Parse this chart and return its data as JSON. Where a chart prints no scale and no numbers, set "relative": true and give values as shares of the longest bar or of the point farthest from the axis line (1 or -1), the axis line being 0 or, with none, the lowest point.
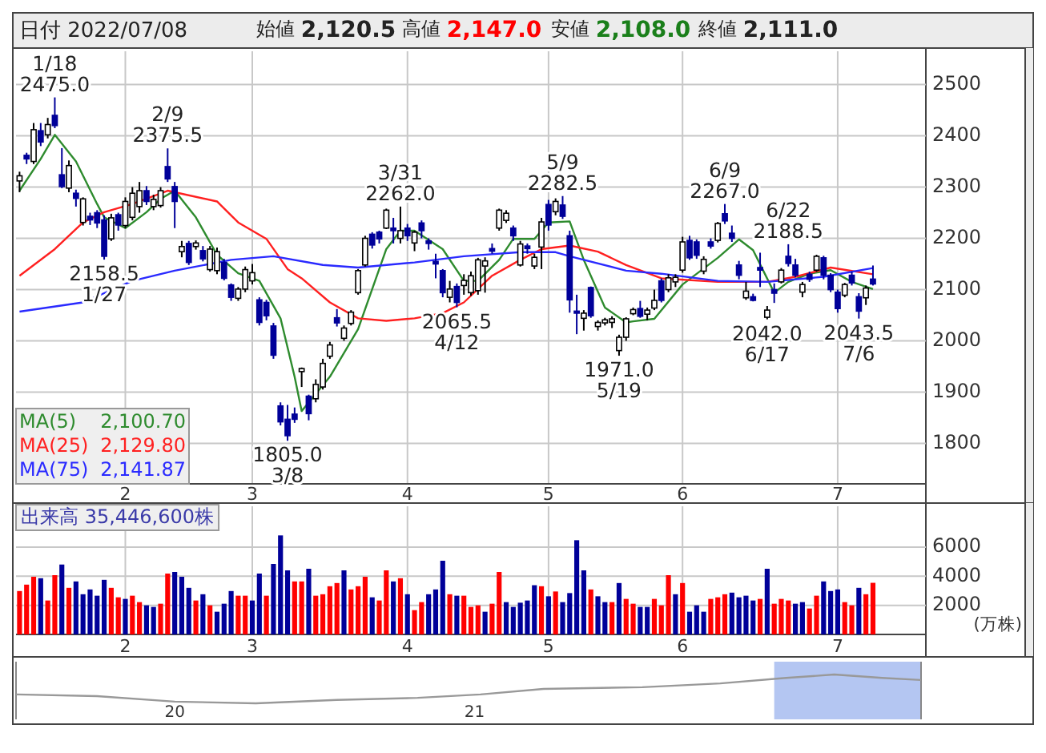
{
  "chart_data": [
    {
      "type": "other",
      "title": "日付 2022/07/08",
      "annotations": [
        "始値 **2,120.5**",
        "高値 **2,147.0**",
        "安値 **2,108.0**",
        "終値 **2,111.0**"
      ]
    },
    {
      "type": "candlestick",
      "colors": [
        "#ffffff",
        "#000099",
        "#ffffff",
        "#000099",
        "#ffffff",
        "#000099",
        "#000099",
        "#ffffff",
        "#000099",
        "#ffffff",
        "#000099",
        "#000099",
        "#000099",
        "#ffffff",
        "#000099",
        "#ffffff",
        "#ffffff",
        "#ffffff",
        "#000099",
        "#ffffff",
        "#ffffff",
        "#000099",
        "#000099",
        "#ffffff",
        "#000099",
        "#ffffff",
        "#000099",
        "#ffffff",
        "#ffffff",
        "#000099",
        "#000099",
        "#ffffff",
        "#ffffff",
        "#ffffff",
        "#000099",
        "#000099",
        "#000099",
        "#000099",
        "#000099",
        "#000099",
        "#ffffff",
        "#000099",
        "#ffffff",
        "#ffffff",
        "#ffffff",
        "#000099",
        "#ffffff",
        "#ffffff",
        "#ffffff",
        "#ffffff",
        "#000099",
        "#000099",
        "#ffffff",
        "#000099",
        "#ffffff",
        "#000099",
        "#ffffff",
        "#000099",
        "#000099",
        "#000099",
        "#000099",
        "#ffffff",
        "#000099",
        "#ffffff",
        "#ffffff",
        "#ffffff",
        "#ffffff",
        "#000099",
        "#ffffff",
        "#ffffff",
        "#000099",
        "#ffffff",
        "#000099",
        "#ffffff",
        "#ffffff",
        "#000099",
        "#ffffff",
        "#000099",
        "#000099",
        "#000099",
        "#ffffff",
        "#000099",
        "#ffffff",
        "#ffffff",
        "#ffffff",
        "#ffffff",
        "#ffffff",
        "#ffffff",
        "#000099",
        "#ffffff",
        "#ffffff",
        "#000099",
        "#ffffff",
        "#ffffff",
        "#ffffff",
        "#000099",
        "#000099",
        "#ffffff",
        "#000099",
        "#ffffff",
        "#000099",
        "#000099",
        "#000099",
        "#ffffff",
        "#000099",
        "#000099",
        "#ffffff",
        "#000099",
        "#ffffff",
        "#000099",
        "#000099",
        "#ffffff",
        "#000099",
        "#ffffff",
        "#000099",
        "#000099",
        "#000099",
        "#ffffff",
        "#000099",
        "#000099",
        "#ffffff",
        "#000099"
      ],
      "grid": true,
      "legend": "bottom left",
      "ylim": [
        1721,
        2565
      ],
      "yticks": [
        1800,
        1900,
        2000,
        2100,
        2200,
        2300,
        2400,
        2500
      ],
      "categories": [
        null,
        null,
        null,
        null,
        null,
        null,
        null,
        null,
        null,
        null,
        null,
        null,
        null,
        null,
        null,
        "2",
        null,
        null,
        null,
        null,
        null,
        null,
        null,
        null,
        null,
        null,
        null,
        null,
        null,
        null,
        null,
        null,
        null,
        "3",
        null,
        null,
        null,
        null,
        null,
        null,
        null,
        null,
        null,
        null,
        null,
        null,
        null,
        null,
        null,
        null,
        null,
        null,
        null,
        null,
        null,
        "4",
        null,
        null,
        null,
        null,
        null,
        null,
        null,
        null,
        null,
        null,
        null,
        null,
        null,
        null,
        null,
        null,
        null,
        null,
        null,
        "5",
        null,
        null,
        null,
        null,
        null,
        null,
        null,
        null,
        null,
        null,
        null,
        null,
        null,
        null,
        null,
        null,
        null,
        null,
        "6",
        null,
        null,
        null,
        null,
        null,
        null,
        null,
        null,
        null,
        null,
        null,
        null,
        null,
        null,
        null,
        null,
        null,
        null,
        null,
        null,
        null,
        "7",
        null,
        null,
        null,
        null,
        null
      ],
      "ohlc": [
        [
          2312,
          2330,
          2290,
          2322
        ],
        [
          2362,
          2367,
          2345,
          2355
        ],
        [
          2350,
          2425,
          2345,
          2412
        ],
        [
          2410,
          2425,
          2380,
          2388
        ],
        [
          2402,
          2435,
          2395,
          2422
        ],
        [
          2440,
          2475,
          2415,
          2420
        ],
        [
          2324,
          2376,
          2298,
          2301
        ],
        [
          2298,
          2352,
          2290,
          2342
        ],
        [
          2288,
          2295,
          2262,
          2278
        ],
        [
          2231,
          2280,
          2225,
          2277
        ],
        [
          2243,
          2250,
          2226,
          2236
        ],
        [
          2250,
          2255,
          2220,
          2230
        ],
        [
          2236,
          2245,
          2158.5,
          2165
        ],
        [
          2199,
          2248,
          2195,
          2240
        ],
        [
          2246,
          2250,
          2215,
          2226
        ],
        [
          2225,
          2280,
          2220,
          2272
        ],
        [
          2241,
          2300,
          2235,
          2288
        ],
        [
          2262,
          2310,
          2250,
          2293
        ],
        [
          2293,
          2302,
          2265,
          2272
        ],
        [
          2262,
          2285,
          2255,
          2276
        ],
        [
          2264,
          2300,
          2260,
          2293
        ],
        [
          2340,
          2375.5,
          2310,
          2316
        ],
        [
          2301,
          2310,
          2220,
          2272
        ],
        [
          2174,
          2195,
          2163,
          2184
        ],
        [
          2190,
          2195,
          2148,
          2153
        ],
        [
          2184,
          2196,
          2178,
          2191
        ],
        [
          2176,
          2185,
          2155,
          2160
        ],
        [
          2139,
          2185,
          2135,
          2179
        ],
        [
          2137,
          2182,
          2130,
          2174
        ],
        [
          2153,
          2160,
          2118,
          2122
        ],
        [
          2109,
          2112,
          2078,
          2085
        ],
        [
          2083,
          2105,
          2078,
          2101
        ],
        [
          2101,
          2145,
          2095,
          2139
        ],
        [
          2117,
          2150,
          2110,
          2133
        ],
        [
          2080,
          2085,
          2030,
          2036
        ],
        [
          2075,
          2080,
          2040,
          2049
        ],
        [
          2029,
          2035,
          1965,
          1972
        ],
        [
          1873,
          1880,
          1835,
          1842
        ],
        [
          1847,
          1875,
          1805,
          1815
        ],
        [
          1857,
          1870,
          1840,
          1847
        ],
        [
          1940,
          1948,
          1910,
          1946
        ],
        [
          1892,
          1895,
          1845,
          1858
        ],
        [
          1887,
          1925,
          1880,
          1915
        ],
        [
          1910,
          1965,
          1905,
          1956
        ],
        [
          1970,
          1998,
          1965,
          1992
        ],
        [
          2045,
          2062,
          2028,
          2035
        ],
        [
          2005,
          2030,
          2000,
          2025
        ],
        [
          2034,
          2060,
          2030,
          2056
        ],
        [
          2094,
          2140,
          2090,
          2137
        ],
        [
          2148,
          2205,
          2145,
          2200
        ],
        [
          2208,
          2212,
          2180,
          2187
        ],
        [
          2212,
          2215,
          2190,
          2199
        ],
        [
          2220,
          2258,
          2218,
          2255
        ],
        [
          2220,
          2240,
          2190,
          2215
        ],
        [
          2200,
          2262,
          2190,
          2215
        ],
        [
          2220,
          2228,
          2195,
          2205
        ],
        [
          2191,
          2215,
          2175,
          2212
        ],
        [
          2230,
          2235,
          2200,
          2215
        ],
        [
          2195,
          2200,
          2178,
          2190
        ],
        [
          2155,
          2170,
          2122,
          2150
        ],
        [
          2137,
          2140,
          2085,
          2094
        ],
        [
          2085,
          2117,
          2075,
          2101
        ],
        [
          2106,
          2112,
          2065.5,
          2075
        ],
        [
          2108,
          2130,
          2090,
          2118
        ],
        [
          2094,
          2135,
          2088,
          2127
        ],
        [
          2098,
          2162,
          2090,
          2158
        ],
        [
          2146,
          2163,
          2094,
          2156
        ],
        [
          2180,
          2190,
          2170,
          2175
        ],
        [
          2220,
          2258,
          2215,
          2255
        ],
        [
          2235,
          2255,
          2230,
          2249
        ],
        [
          2220,
          2225,
          2195,
          2205
        ],
        [
          2148,
          2195,
          2145,
          2189
        ],
        [
          2185,
          2190,
          2170,
          2180
        ],
        [
          2146,
          2170,
          2140,
          2163
        ],
        [
          2183,
          2240,
          2140,
          2232
        ],
        [
          2266,
          2275,
          2215,
          2226
        ],
        [
          2252,
          2278,
          2245,
          2272
        ],
        [
          2265,
          2282.5,
          2238,
          2243
        ],
        [
          2205,
          2215,
          2055,
          2080
        ],
        [
          2058,
          2090,
          2013,
          2054
        ],
        [
          2044,
          2060,
          2020,
          2054
        ],
        [
          2104,
          2106,
          2045,
          2049
        ],
        [
          2028,
          2040,
          2020,
          2036
        ],
        [
          2035,
          2045,
          2030,
          2041
        ],
        [
          2036,
          2048,
          2025,
          2043
        ],
        [
          1981,
          2012,
          1971,
          2007
        ],
        [
          2007,
          2046,
          2000,
          2043
        ],
        [
          2053,
          2065,
          2050,
          2061
        ],
        [
          2063,
          2078,
          2045,
          2048
        ],
        [
          2052,
          2065,
          2040,
          2060
        ],
        [
          2064,
          2100,
          2060,
          2079
        ],
        [
          2117,
          2122,
          2075,
          2079
        ],
        [
          2100,
          2130,
          2095,
          2123
        ],
        [
          2115,
          2130,
          2105,
          2124
        ],
        [
          2138,
          2203,
          2133,
          2193
        ],
        [
          2196,
          2205,
          2158,
          2162
        ],
        [
          2193,
          2198,
          2160,
          2167
        ],
        [
          2136,
          2165,
          2130,
          2159
        ],
        [
          2193,
          2200,
          2180,
          2185
        ],
        [
          2196,
          2232,
          2192,
          2229
        ],
        [
          2248,
          2267,
          2228,
          2234
        ],
        [
          2210,
          2225,
          2193,
          2200
        ],
        [
          2148,
          2156,
          2120,
          2128
        ],
        [
          2084,
          2115,
          2080,
          2097
        ],
        [
          2086,
          2092,
          2077,
          2079
        ],
        [
          2143,
          2172,
          2105,
          2138
        ],
        [
          2046,
          2068,
          2042,
          2060
        ],
        [
          2100,
          2112,
          2074,
          2093
        ],
        [
          2115,
          2142,
          2112,
          2138
        ],
        [
          2165,
          2188.5,
          2145,
          2151
        ],
        [
          2148,
          2160,
          2124,
          2128
        ],
        [
          2095,
          2115,
          2085,
          2110
        ],
        [
          2130,
          2135,
          2115,
          2120
        ],
        [
          2138,
          2168,
          2135,
          2165
        ],
        [
          2162,
          2166,
          2120,
          2128
        ],
        [
          2128,
          2132,
          2095,
          2100
        ],
        [
          2095,
          2100,
          2055,
          2063
        ],
        [
          2089,
          2113,
          2085,
          2110
        ],
        [
          2128,
          2135,
          2108,
          2113
        ],
        [
          2086,
          2093,
          2043.5,
          2058
        ],
        [
          2084,
          2108,
          2070,
          2103
        ],
        [
          2120.5,
          2147,
          2108,
          2111
        ]
      ],
      "series": [
        {
          "type": "line",
          "name": "MA(5) 2,100.70",
          "color": "#2e8b2e",
          "values": [
            2293,
            null,
            null,
            2355,
            null,
            2402,
            null,
            null,
            2350,
            null,
            null,
            2267,
            2241,
            null,
            null,
            2220,
            null,
            null,
            2251,
            null,
            2277,
            null,
            2293,
            null,
            null,
            2241,
            null,
            null,
            2168,
            null,
            null,
            2132,
            null,
            null,
            2117,
            null,
            null,
            2044,
            null,
            1930,
            1863,
            null,
            null,
            null,
            1930,
            null,
            null,
            null,
            2023,
            null,
            null,
            null,
            2179,
            null,
            2215,
            null,
            2215,
            null,
            null,
            null,
            2179,
            null,
            null,
            2117,
            null,
            2117,
            null,
            null,
            2158,
            null,
            2199,
            null,
            null,
            2199,
            null,
            2231,
            null,
            null,
            2233,
            null,
            2158,
            null,
            null,
            2065,
            null,
            null,
            2036,
            2038,
            null,
            null,
            2043,
            null,
            null,
            null,
            2110,
            null,
            null,
            null,
            null,
            2162,
            null,
            null,
            2198,
            null,
            2177,
            null,
            null,
            2094,
            null,
            2115,
            null,
            null,
            2131,
            null,
            null,
            2138,
            null,
            null,
            2115,
            null,
            null,
            2101
          ]
        },
        {
          "type": "line",
          "name": "MA(25) 2,129.80",
          "color": "#ff2020",
          "values": [
            2127,
            null,
            null,
            null,
            null,
            2179,
            null,
            null,
            null,
            2231,
            null,
            null,
            2251,
            null,
            null,
            null,
            2267,
            null,
            null,
            null,
            null,
            2293,
            null,
            null,
            null,
            null,
            null,
            null,
            2272,
            null,
            null,
            2231,
            null,
            null,
            null,
            2199,
            null,
            null,
            2140,
            null,
            2122,
            null,
            null,
            null,
            2075,
            null,
            null,
            null,
            2044,
            null,
            null,
            null,
            2039,
            null,
            null,
            null,
            2044,
            null,
            null,
            null,
            2054,
            null,
            null,
            2075,
            null,
            null,
            null,
            2127,
            null,
            null,
            null,
            2158,
            null,
            null,
            2179,
            null,
            null,
            null,
            2186,
            null,
            null,
            null,
            2174,
            null,
            null,
            null,
            2148,
            null,
            null,
            null,
            null,
            2122,
            null,
            null,
            null,
            null,
            null,
            null,
            null,
            2115,
            null,
            null,
            null,
            null,
            null,
            null,
            2115,
            null,
            null,
            null,
            2125,
            null,
            null,
            null,
            null,
            2143,
            null,
            null,
            null,
            null,
            null,
            2130
          ]
        },
        {
          "type": "line",
          "name": "MA(75) 2,141.87",
          "color": "#2a2aff",
          "values": [
            2057,
            null,
            null,
            null,
            null,
            null,
            null,
            null,
            null,
            2075,
            null,
            null,
            null,
            null,
            null,
            null,
            2117,
            null,
            null,
            null,
            null,
            null,
            2137,
            null,
            null,
            null,
            null,
            null,
            null,
            null,
            2158,
            null,
            null,
            null,
            null,
            null,
            2165,
            null,
            null,
            null,
            null,
            null,
            null,
            2148,
            null,
            null,
            null,
            null,
            2143,
            null,
            null,
            null,
            null,
            null,
            null,
            null,
            2153,
            null,
            null,
            null,
            null,
            null,
            null,
            2165,
            null,
            null,
            null,
            null,
            null,
            null,
            null,
            2173,
            null,
            null,
            null,
            null,
            2173,
            null,
            2165,
            null,
            null,
            null,
            null,
            null,
            null,
            null,
            2137,
            null,
            null,
            null,
            null,
            2131,
            null,
            null,
            null,
            null,
            null,
            null,
            null,
            2117,
            null,
            null,
            null,
            null,
            null,
            null,
            2115,
            null,
            null,
            null,
            null,
            null,
            null,
            null,
            2125,
            null,
            null,
            null,
            null,
            null,
            null,
            2142
          ]
        }
      ],
      "annotations": [
        {
          "text": "1/18\n2475.0",
          "y": 2475
        },
        {
          "text": "2158.5\n1/27",
          "y": 2158.5
        },
        {
          "text": "2/9\n2375.5",
          "y": 2375.5
        },
        {
          "text": "1805.0\n3/8",
          "y": 1805
        },
        {
          "text": "3/31\n2262.0",
          "y": 2262
        },
        {
          "text": "2065.5\n4/12",
          "y": 2065.5
        },
        {
          "text": "5/9\n2282.5",
          "y": 2282.5
        },
        {
          "text": "1971.0\n5/19",
          "y": 1971
        },
        {
          "text": "6/9\n2267.0",
          "y": 2267
        },
        {
          "text": "2042.0\n6/17",
          "y": 2042
        },
        {
          "text": "6/22\n2188.5",
          "y": 2188.5
        },
        {
          "text": "2043.5\n7/6",
          "y": 2043.5
        }
      ]
    },
    {
      "type": "bar",
      "title": "出来高 35,446,600株",
      "ylabel": "(万株)",
      "grid": true,
      "ylim": [
        0,
        8800
      ],
      "yticks": [
        2000,
        4000,
        6000
      ],
      "categories": [
        null,
        null,
        null,
        null,
        null,
        null,
        null,
        null,
        null,
        null,
        null,
        null,
        null,
        null,
        null,
        "2",
        null,
        null,
        null,
        null,
        null,
        null,
        null,
        null,
        null,
        null,
        null,
        null,
        null,
        null,
        null,
        null,
        null,
        "3",
        null,
        null,
        null,
        null,
        null,
        null,
        null,
        null,
        null,
        null,
        null,
        null,
        null,
        null,
        null,
        null,
        null,
        null,
        null,
        null,
        null,
        "4",
        null,
        null,
        null,
        null,
        null,
        null,
        null,
        null,
        null,
        null,
        null,
        null,
        null,
        null,
        null,
        null,
        null,
        null,
        null,
        "5",
        null,
        null,
        null,
        null,
        null,
        null,
        null,
        null,
        null,
        null,
        null,
        null,
        null,
        null,
        null,
        null,
        null,
        null,
        "6",
        null,
        null,
        null,
        null,
        null,
        null,
        null,
        null,
        null,
        null,
        null,
        null,
        null,
        null,
        null,
        null,
        null,
        null,
        null,
        null,
        null,
        "7",
        null,
        null,
        null,
        null,
        null
      ],
      "values": [
        2980,
        3420,
        3960,
        3860,
        2330,
        4070,
        4800,
        3200,
        3640,
        2760,
        3090,
        2660,
        3750,
        3200,
        2550,
        2440,
        2660,
        2220,
        2000,
        1890,
        2110,
        4180,
        4290,
        3960,
        3200,
        2330,
        2760,
        2000,
        1560,
        2110,
        2980,
        2660,
        2660,
        2330,
        4180,
        2660,
        4840,
        6800,
        4400,
        3640,
        3640,
        4510,
        2660,
        2760,
        3310,
        3530,
        4400,
        3090,
        3310,
        3960,
        2550,
        2330,
        4400,
        3640,
        3860,
        2760,
        1670,
        2220,
        2760,
        3090,
        5060,
        2760,
        2660,
        2660,
        1890,
        2000,
        1560,
        2110,
        4290,
        2220,
        1890,
        2180,
        2330,
        3380,
        3310,
        2620,
        2950,
        2220,
        2840,
        6470,
        4400,
        3090,
        2620,
        2220,
        2220,
        3530,
        2440,
        2110,
        1890,
        1890,
        2440,
        2000,
        4070,
        2760,
        3530,
        1560,
        2000,
        1560,
        2440,
        2550,
        2760,
        2870,
        2550,
        2660,
        2330,
        2440,
        4510,
        2110,
        2440,
        2330,
        2110,
        2220,
        1780,
        2660,
        3640,
        2980,
        3090,
        2220,
        2000,
        3200,
        2760,
        3544.66
      ],
      "colors": [
        "#ff0000",
        "#ff0000",
        "#ff0000",
        "#000099",
        "#ff0000",
        "#ff0000",
        "#000099",
        "#ff0000",
        "#000099",
        "#000099",
        "#000099",
        "#000099",
        "#000099",
        "#ff0000",
        "#ff0000",
        "#000099",
        "#ff0000",
        "#ff0000",
        "#000099",
        "#000099",
        "#ff0000",
        "#ff0000",
        "#000099",
        "#000099",
        "#000099",
        "#ff0000",
        "#000099",
        "#ff0000",
        "#000099",
        "#000099",
        "#000099",
        "#ff0000",
        "#ff0000",
        "#000099",
        "#000099",
        "#ff0000",
        "#000099",
        "#000099",
        "#000099",
        "#ff0000",
        "#ff0000",
        "#000099",
        "#ff0000",
        "#ff0000",
        "#ff0000",
        "#ff0000",
        "#000099",
        "#ff0000",
        "#ff0000",
        "#ff0000",
        "#000099",
        "#ff0000",
        "#ff0000",
        "#000099",
        "#ff0000",
        "#000099",
        "#ff0000",
        "#ff0000",
        "#000099",
        "#000099",
        "#000099",
        "#ff0000",
        "#000099",
        "#ff0000",
        "#ff0000",
        "#ff0000",
        "#000099",
        "#ff0000",
        "#ff0000",
        "#000099",
        "#000099",
        "#000099",
        "#000099",
        "#000099",
        "#ff0000",
        "#000099",
        "#ff0000",
        "#000099",
        "#000099",
        "#000099",
        "#000099",
        "#ff0000",
        "#000099",
        "#000099",
        "#ff0000",
        "#000099",
        "#ff0000",
        "#ff0000",
        "#000099",
        "#000099",
        "#ff0000",
        "#ff0000",
        "#ff0000",
        "#000099",
        "#ff0000",
        "#000099",
        "#000099",
        "#000099",
        "#ff0000",
        "#ff0000",
        "#ff0000",
        "#000099",
        "#000099",
        "#000099",
        "#000099",
        "#ff0000",
        "#000099",
        "#ff0000",
        "#ff0000",
        "#ff0000",
        "#000099",
        "#000099",
        "#ff0000",
        "#ff0000",
        "#000099",
        "#000099",
        "#000099",
        "#ff0000",
        "#ff0000",
        "#000099",
        "#ff0000",
        "#ff0000"
      ]
    },
    {
      "type": "line",
      "relative": true,
      "color": "#999999",
      "xlim": [
        2019.47,
        2022.49
      ],
      "xticks": [
        {
          "value": 2020,
          "label": "20"
        },
        {
          "value": 2021,
          "label": "21"
        }
      ],
      "x": [
        2019.47,
        2019.74,
        2020.0,
        2020.27,
        2020.54,
        2020.81,
        2021.02,
        2021.23,
        2021.56,
        2021.82,
        2022.04,
        2022.2,
        2022.36,
        2022.49
      ],
      "values": [
        0.31,
        0.25,
        0.06,
        0,
        0.12,
        0.19,
        0.31,
        0.5,
        0.56,
        0.69,
        0.88,
        1,
        0.88,
        0.81
      ],
      "bands": [
        {
          "axis": "x",
          "from": 2022.0,
          "to": 2022.49,
          "color": "#b4c6f2"
        }
      ]
    }
  ]
}
